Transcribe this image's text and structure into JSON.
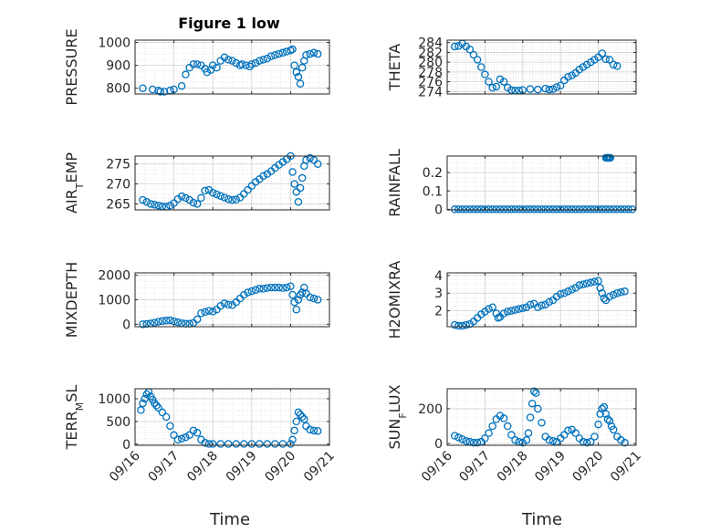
{
  "figure": {
    "title": "Figure 1 low",
    "marker_color": "#0072BD",
    "grid": true,
    "minor_grid": true
  },
  "chart_data": [
    {
      "type": "scatter",
      "ylabel": "PRESSURE",
      "title": "Figure 1 low",
      "yticks": [
        "800",
        "900",
        "1000"
      ],
      "yticks_values": [
        800,
        900,
        1000
      ],
      "ylim": [
        775,
        1010
      ],
      "xticks": [
        "09/16",
        "09/17",
        "09/18",
        "09/19",
        "09/20",
        "09/21"
      ],
      "xticks_values": [
        0,
        1,
        2,
        3,
        4,
        5
      ],
      "xlim": [
        0,
        5
      ],
      "show_xticklabels": false,
      "series": [
        {
          "x": [
            0.2,
            0.45,
            0.6,
            0.65,
            0.75,
            0.9,
            1.0,
            1.2,
            1.3,
            1.4,
            1.5,
            1.6,
            1.7,
            1.8,
            1.85,
            1.95,
            2.0,
            2.1,
            2.2,
            2.3,
            2.4,
            2.5,
            2.6,
            2.7,
            2.75,
            2.85,
            2.95,
            3.0,
            3.1,
            3.2,
            3.3,
            3.4,
            3.5,
            3.6,
            3.7,
            3.8,
            3.9,
            4.0,
            4.05,
            4.1,
            4.15,
            4.2,
            4.25,
            4.3,
            4.35,
            4.4,
            4.5,
            4.6,
            4.7
          ],
          "y": [
            800,
            795,
            790,
            785,
            785,
            790,
            795,
            810,
            860,
            890,
            905,
            905,
            900,
            885,
            870,
            880,
            900,
            890,
            920,
            935,
            925,
            920,
            910,
            900,
            905,
            900,
            895,
            905,
            910,
            920,
            925,
            930,
            940,
            945,
            950,
            955,
            960,
            965,
            970,
            900,
            870,
            850,
            820,
            890,
            920,
            945,
            950,
            955,
            950
          ]
        }
      ]
    },
    {
      "type": "scatter",
      "ylabel": "THETA",
      "yticks": [
        "274",
        "276",
        "278",
        "280",
        "282",
        "284"
      ],
      "yticks_values": [
        274,
        276,
        278,
        280,
        282,
        284
      ],
      "ylim": [
        273.5,
        284.5
      ],
      "xticks": [
        "09/16",
        "09/17",
        "09/18",
        "09/19",
        "09/20",
        "09/21"
      ],
      "xticks_values": [
        0,
        1,
        2,
        3,
        4,
        5
      ],
      "xlim": [
        0,
        5
      ],
      "show_xticklabels": false,
      "series": [
        {
          "x": [
            0.2,
            0.3,
            0.4,
            0.5,
            0.6,
            0.7,
            0.8,
            0.9,
            1.0,
            1.1,
            1.2,
            1.3,
            1.4,
            1.5,
            1.6,
            1.7,
            1.8,
            1.9,
            2.0,
            2.2,
            2.4,
            2.6,
            2.7,
            2.8,
            2.9,
            3.0,
            3.1,
            3.2,
            3.3,
            3.4,
            3.5,
            3.6,
            3.7,
            3.8,
            3.9,
            4.0,
            4.1,
            4.2,
            4.3,
            4.4,
            4.5
          ],
          "y": [
            283.2,
            283.3,
            283.8,
            283.2,
            282.6,
            281.5,
            280.5,
            279,
            277.5,
            276,
            274.8,
            275,
            276.5,
            276,
            274.8,
            274.3,
            274.2,
            274.2,
            274.3,
            274.5,
            274.4,
            274.6,
            274.4,
            274.5,
            274.9,
            275.2,
            276.3,
            277,
            277.3,
            277.8,
            278.5,
            279,
            279.5,
            280,
            280.5,
            281,
            281.8,
            280.6,
            280.5,
            279.5,
            279.2
          ]
        }
      ]
    },
    {
      "type": "scatter",
      "ylabel": "AIR_TEMP",
      "yticks": [
        "265",
        "270",
        "275"
      ],
      "yticks_values": [
        265,
        270,
        275
      ],
      "ylim": [
        263.5,
        277
      ],
      "xticks": [
        "09/16",
        "09/17",
        "09/18",
        "09/19",
        "09/20",
        "09/21"
      ],
      "xticks_values": [
        0,
        1,
        2,
        3,
        4,
        5
      ],
      "xlim": [
        0,
        5
      ],
      "show_xticklabels": false,
      "series": [
        {
          "x": [
            0.2,
            0.3,
            0.4,
            0.5,
            0.6,
            0.7,
            0.8,
            0.9,
            1.0,
            1.1,
            1.2,
            1.3,
            1.4,
            1.5,
            1.6,
            1.7,
            1.8,
            1.9,
            2.0,
            2.1,
            2.2,
            2.3,
            2.4,
            2.5,
            2.6,
            2.7,
            2.8,
            2.9,
            3.0,
            3.1,
            3.2,
            3.3,
            3.4,
            3.5,
            3.6,
            3.7,
            3.8,
            3.9,
            4.0,
            4.05,
            4.1,
            4.15,
            4.2,
            4.25,
            4.3,
            4.35,
            4.4,
            4.5,
            4.6,
            4.7
          ],
          "y": [
            266,
            265.5,
            265,
            264.8,
            264.6,
            264.4,
            264.3,
            264.6,
            265.2,
            266.2,
            266.9,
            266.5,
            266,
            265.3,
            265,
            266.5,
            268.3,
            268.5,
            267.8,
            267.4,
            267,
            266.6,
            266.2,
            266,
            266.1,
            266.6,
            267.5,
            268.5,
            269.5,
            270.5,
            271.2,
            272,
            272.5,
            273.2,
            274,
            274.8,
            275.5,
            276.2,
            277,
            273,
            270,
            268,
            265.5,
            269,
            271.5,
            274.5,
            276,
            276.5,
            276,
            275
          ]
        }
      ]
    },
    {
      "type": "scatter",
      "ylabel": "RAINFALL",
      "yticks": [
        "0",
        "0.1",
        "0.2"
      ],
      "yticks_values": [
        0,
        0.1,
        0.2
      ],
      "ylim": [
        -0.003,
        0.29
      ],
      "xticks": [
        "09/16",
        "09/17",
        "09/18",
        "09/19",
        "09/20",
        "09/21"
      ],
      "xticks_values": [
        0,
        1,
        2,
        3,
        4,
        5
      ],
      "xlim": [
        0,
        5
      ],
      "show_xticklabels": false,
      "series": [
        {
          "x": [
            0.2,
            0.3,
            0.4,
            0.5,
            0.6,
            0.7,
            0.8,
            0.9,
            1.0,
            1.1,
            1.2,
            1.3,
            1.4,
            1.5,
            1.6,
            1.7,
            1.8,
            1.9,
            2.0,
            2.1,
            2.2,
            2.3,
            2.4,
            2.5,
            2.6,
            2.7,
            2.8,
            2.9,
            3.0,
            3.1,
            3.2,
            3.3,
            3.4,
            3.5,
            3.6,
            3.7,
            3.8,
            3.9,
            4.0,
            4.1,
            4.2,
            4.3,
            4.4,
            4.5,
            4.6,
            4.7,
            4.8,
            4.9,
            4.2,
            4.22,
            4.25,
            4.28,
            4.3,
            4.32
          ],
          "y": [
            0,
            0,
            0,
            0,
            0,
            0,
            0,
            0,
            0,
            0,
            0,
            0,
            0,
            0,
            0,
            0,
            0,
            0,
            0,
            0,
            0,
            0,
            0,
            0,
            0,
            0,
            0,
            0,
            0,
            0,
            0,
            0,
            0,
            0,
            0,
            0,
            0,
            0,
            0,
            0,
            0,
            0,
            0,
            0,
            0,
            0,
            0,
            0,
            0.28,
            0.28,
            0.28,
            0.28,
            0.28,
            0.28
          ]
        }
      ]
    },
    {
      "type": "scatter",
      "ylabel": "MIXDEPTH",
      "yticks": [
        "0",
        "1000",
        "2000"
      ],
      "yticks_values": [
        0,
        1000,
        2000
      ],
      "ylim": [
        -100,
        2100
      ],
      "xticks": [
        "09/16",
        "09/17",
        "09/18",
        "09/19",
        "09/20",
        "09/21"
      ],
      "xticks_values": [
        0,
        1,
        2,
        3,
        4,
        5
      ],
      "xlim": [
        0,
        5
      ],
      "show_xticklabels": false,
      "series": [
        {
          "x": [
            0.2,
            0.3,
            0.4,
            0.5,
            0.6,
            0.7,
            0.8,
            0.9,
            1.0,
            1.1,
            1.2,
            1.3,
            1.4,
            1.5,
            1.6,
            1.7,
            1.8,
            1.9,
            2.0,
            2.1,
            2.2,
            2.3,
            2.4,
            2.5,
            2.6,
            2.7,
            2.8,
            2.9,
            3.0,
            3.1,
            3.2,
            3.3,
            3.4,
            3.5,
            3.6,
            3.7,
            3.8,
            3.9,
            4.0,
            4.05,
            4.1,
            4.15,
            4.2,
            4.25,
            4.3,
            4.35,
            4.4,
            4.5,
            4.6,
            4.7
          ],
          "y": [
            0,
            10,
            30,
            60,
            100,
            130,
            150,
            160,
            120,
            80,
            40,
            20,
            20,
            50,
            200,
            450,
            500,
            550,
            520,
            600,
            750,
            850,
            800,
            780,
            900,
            1050,
            1200,
            1300,
            1350,
            1400,
            1450,
            1450,
            1480,
            1500,
            1500,
            1500,
            1480,
            1500,
            1550,
            1200,
            900,
            600,
            1000,
            1200,
            1300,
            1500,
            1250,
            1100,
            1050,
            1000
          ]
        }
      ]
    },
    {
      "type": "scatter",
      "ylabel": "H2OMIXRA",
      "yticks": [
        "2",
        "3",
        "4"
      ],
      "yticks_values": [
        2,
        3,
        4
      ],
      "ylim": [
        1.1,
        4.15
      ],
      "xticks": [
        "09/16",
        "09/17",
        "09/18",
        "09/19",
        "09/20",
        "09/21"
      ],
      "xticks_values": [
        0,
        1,
        2,
        3,
        4,
        5
      ],
      "xlim": [
        0,
        5
      ],
      "show_xticklabels": false,
      "series": [
        {
          "x": [
            0.2,
            0.3,
            0.4,
            0.5,
            0.6,
            0.7,
            0.8,
            0.9,
            1.0,
            1.1,
            1.2,
            1.3,
            1.35,
            1.4,
            1.5,
            1.6,
            1.7,
            1.8,
            1.9,
            2.0,
            2.1,
            2.2,
            2.3,
            2.4,
            2.5,
            2.6,
            2.7,
            2.8,
            2.9,
            3.0,
            3.1,
            3.2,
            3.3,
            3.4,
            3.5,
            3.6,
            3.7,
            3.8,
            3.9,
            4.0,
            4.05,
            4.1,
            4.15,
            4.2,
            4.3,
            4.4,
            4.5,
            4.6,
            4.7
          ],
          "y": [
            1.2,
            1.15,
            1.15,
            1.2,
            1.25,
            1.4,
            1.6,
            1.8,
            1.95,
            2.1,
            2.2,
            1.85,
            1.6,
            1.65,
            1.85,
            1.95,
            2.0,
            2.05,
            2.1,
            2.15,
            2.2,
            2.35,
            2.4,
            2.2,
            2.3,
            2.35,
            2.5,
            2.6,
            2.8,
            2.95,
            3.0,
            3.1,
            3.2,
            3.3,
            3.45,
            3.5,
            3.55,
            3.6,
            3.65,
            3.7,
            3.3,
            3.0,
            2.7,
            2.6,
            2.8,
            2.9,
            3.0,
            3.05,
            3.1
          ]
        }
      ]
    },
    {
      "type": "scatter",
      "ylabel": "TERR_MSL",
      "yticks": [
        "0",
        "500",
        "1000"
      ],
      "yticks_values": [
        0,
        500,
        1000
      ],
      "ylim": [
        -25,
        1220
      ],
      "xticks": [
        "09/16",
        "09/17",
        "09/18",
        "09/19",
        "09/20",
        "09/21"
      ],
      "xticks_values": [
        0,
        1,
        2,
        3,
        4,
        5
      ],
      "xlim": [
        0,
        5
      ],
      "show_xticklabels": true,
      "series": [
        {
          "x": [
            0.15,
            0.2,
            0.25,
            0.3,
            0.35,
            0.4,
            0.45,
            0.5,
            0.55,
            0.6,
            0.7,
            0.8,
            0.9,
            1.0,
            1.1,
            1.2,
            1.3,
            1.4,
            1.5,
            1.6,
            1.7,
            1.8,
            1.9,
            2.0,
            2.2,
            2.4,
            2.6,
            2.8,
            3.0,
            3.2,
            3.4,
            3.6,
            3.8,
            4.0,
            4.05,
            4.1,
            4.15,
            4.2,
            4.25,
            4.3,
            4.35,
            4.4,
            4.5,
            4.6,
            4.7
          ],
          "y": [
            750,
            900,
            1000,
            1100,
            1150,
            1050,
            980,
            900,
            850,
            800,
            700,
            600,
            400,
            200,
            100,
            120,
            150,
            200,
            300,
            250,
            100,
            30,
            5,
            5,
            5,
            5,
            5,
            5,
            5,
            5,
            5,
            5,
            5,
            5,
            100,
            300,
            500,
            700,
            650,
            600,
            550,
            400,
            320,
            300,
            290
          ]
        }
      ]
    },
    {
      "type": "scatter",
      "ylabel": "SUN_FLUX",
      "yticks": [
        "0",
        "200"
      ],
      "yticks_values": [
        0,
        200
      ],
      "ylim": [
        -10,
        315
      ],
      "xticks": [
        "09/16",
        "09/17",
        "09/18",
        "09/19",
        "09/20",
        "09/21"
      ],
      "xticks_values": [
        0,
        1,
        2,
        3,
        4,
        5
      ],
      "xlim": [
        0,
        5
      ],
      "show_xticklabels": true,
      "series": [
        {
          "x": [
            0.2,
            0.3,
            0.4,
            0.5,
            0.6,
            0.7,
            0.8,
            0.9,
            1.0,
            1.1,
            1.2,
            1.3,
            1.4,
            1.5,
            1.6,
            1.7,
            1.8,
            1.9,
            2.0,
            2.1,
            2.15,
            2.2,
            2.25,
            2.3,
            2.35,
            2.4,
            2.5,
            2.6,
            2.7,
            2.8,
            2.9,
            3.0,
            3.1,
            3.2,
            3.3,
            3.4,
            3.5,
            3.6,
            3.7,
            3.8,
            3.9,
            4.0,
            4.05,
            4.1,
            4.15,
            4.2,
            4.25,
            4.3,
            4.35,
            4.4,
            4.5,
            4.6,
            4.7
          ],
          "y": [
            45,
            35,
            25,
            15,
            10,
            5,
            5,
            10,
            30,
            60,
            100,
            140,
            160,
            145,
            100,
            50,
            20,
            10,
            5,
            20,
            60,
            150,
            230,
            300,
            290,
            200,
            120,
            40,
            20,
            15,
            10,
            30,
            50,
            75,
            80,
            60,
            30,
            10,
            5,
            10,
            40,
            110,
            170,
            200,
            210,
            170,
            140,
            130,
            100,
            80,
            40,
            20,
            5
          ]
        }
      ]
    }
  ],
  "xlabel": "Time"
}
